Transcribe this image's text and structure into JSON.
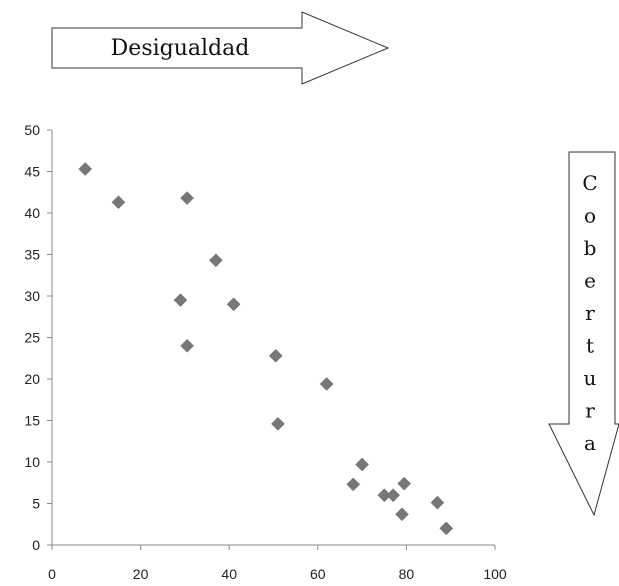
{
  "arrow_top": {
    "label": "Desigualdad"
  },
  "arrow_right": {
    "label": "Cobertura",
    "letters": [
      "C",
      "o",
      "b",
      "e",
      "r",
      "t",
      "u",
      "r",
      "a"
    ]
  },
  "chart_data": {
    "type": "scatter",
    "title": "",
    "xlabel": "",
    "ylabel": "",
    "xlim": [
      0,
      100
    ],
    "ylim": [
      0,
      50
    ],
    "x_ticks": [
      0,
      20,
      40,
      60,
      80,
      100
    ],
    "y_ticks": [
      0,
      5,
      10,
      15,
      20,
      25,
      30,
      35,
      40,
      45,
      50
    ],
    "grid": false,
    "marker": "diamond",
    "marker_color": "#777777",
    "points": [
      {
        "x": 7.5,
        "y": 45.3
      },
      {
        "x": 15.0,
        "y": 41.3
      },
      {
        "x": 30.5,
        "y": 41.8
      },
      {
        "x": 37.0,
        "y": 34.3
      },
      {
        "x": 29.0,
        "y": 29.5
      },
      {
        "x": 41.0,
        "y": 29.0
      },
      {
        "x": 30.5,
        "y": 24.0
      },
      {
        "x": 50.5,
        "y": 22.8
      },
      {
        "x": 62.0,
        "y": 19.4
      },
      {
        "x": 51.0,
        "y": 14.6
      },
      {
        "x": 70.0,
        "y": 9.7
      },
      {
        "x": 68.0,
        "y": 7.3
      },
      {
        "x": 79.5,
        "y": 7.4
      },
      {
        "x": 75.0,
        "y": 6.0
      },
      {
        "x": 77.0,
        "y": 6.0
      },
      {
        "x": 87.0,
        "y": 5.1
      },
      {
        "x": 79.0,
        "y": 3.7
      },
      {
        "x": 89.0,
        "y": 2.0
      }
    ]
  }
}
